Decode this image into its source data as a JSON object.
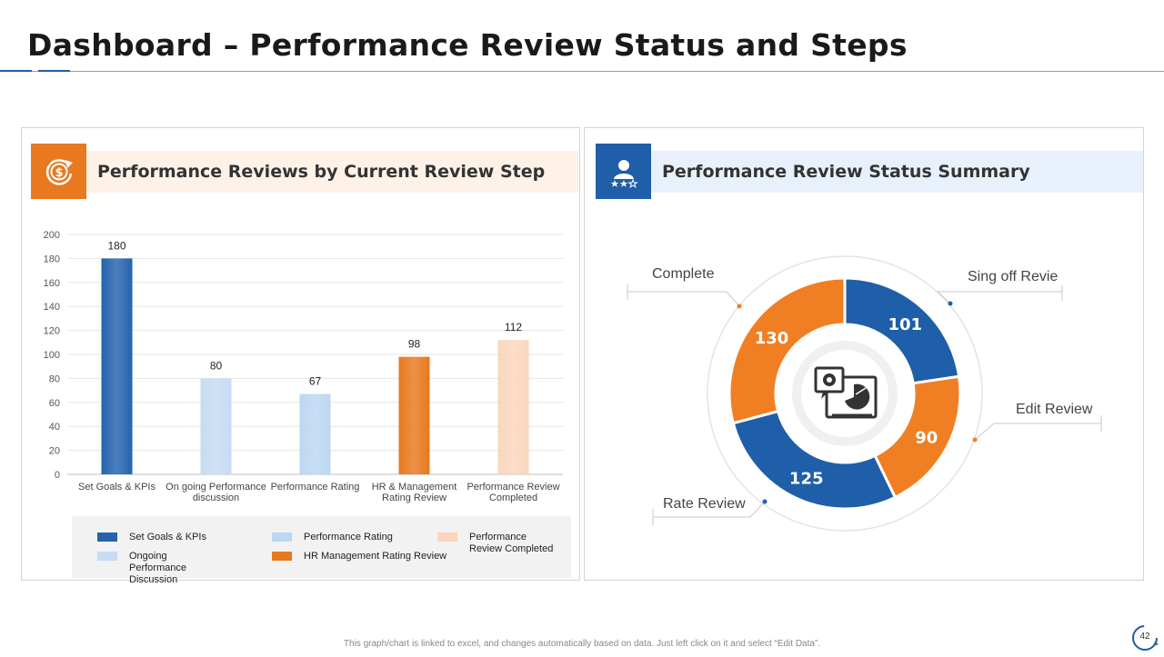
{
  "page": {
    "title": "Dashboard – Performance Review Status and Steps",
    "footnote": "This graph/chart is linked to excel, and changes automatically based on data. Just left click on it and select “Edit Data”.",
    "page_number": "42",
    "accent_orange": "#e87722",
    "accent_blue": "#1f5ea8"
  },
  "left_panel": {
    "title": "Performance  Reviews by Current Review Step",
    "icon": "dollar-cycle-icon"
  },
  "right_panel": {
    "title": "Performance  Review Status Summary",
    "icon": "user-rating-icon",
    "center_icon": "gear-chart-monitor-icon"
  },
  "chart_data": [
    {
      "type": "bar",
      "title": "Performance  Reviews by Current Review Step",
      "categories": [
        "Set Goals & KPIs",
        "On going Performance discussion",
        "Performance Rating",
        "HR & Management Rating Review",
        "Performance Review Completed"
      ],
      "category_lines": [
        [
          "Set Goals & KPIs"
        ],
        [
          "On going Performance",
          "discussion"
        ],
        [
          "Performance Rating"
        ],
        [
          "HR & Management",
          "Rating Review"
        ],
        [
          "Performance Review",
          "Completed"
        ]
      ],
      "values": [
        180,
        80,
        67,
        98,
        112
      ],
      "colors": [
        "#2563ad",
        "#c5dcf3",
        "#bcd7f2",
        "#e8791f",
        "#fad6bd"
      ],
      "ylim": [
        0,
        200
      ],
      "yticks": [
        0,
        20,
        40,
        60,
        80,
        100,
        120,
        140,
        160,
        180,
        200
      ],
      "grid": true,
      "legend": [
        {
          "label": "Set Goals & KPIs",
          "color": "#2563ad"
        },
        {
          "label": "Ongoing Performance Discussion",
          "color": "#c5dcf3"
        },
        {
          "label": "Performance Rating",
          "color": "#bcd7f2"
        },
        {
          "label": "HR Management Rating Review",
          "color": "#e8791f"
        },
        {
          "label": "Performance Review Completed",
          "color": "#fad6bd"
        }
      ],
      "legend_position": "bottom"
    },
    {
      "type": "pie",
      "subtype": "donut",
      "title": "Performance  Review Status Summary",
      "slices": [
        {
          "label": "Sing off Revie",
          "value": 101,
          "color": "#1f5ea8"
        },
        {
          "label": "Edit Review",
          "value": 90,
          "color": "#f07f24"
        },
        {
          "label": "Rate Review",
          "value": 125,
          "color": "#1f5ea8"
        },
        {
          "label": "Complete",
          "value": 130,
          "color": "#f07f24"
        }
      ]
    }
  ]
}
